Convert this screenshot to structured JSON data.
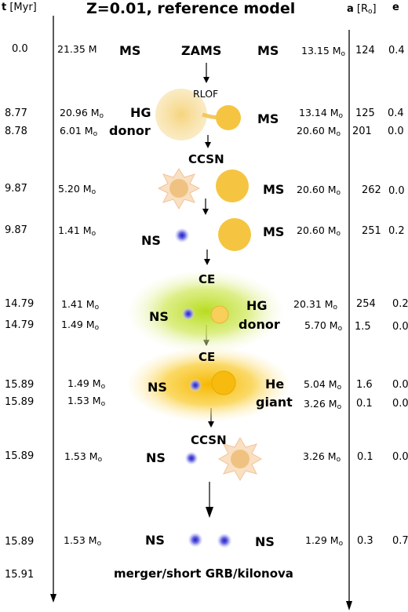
{
  "header": {
    "t_label": "t",
    "t_unit": "[Myr]",
    "title": "Z=0.01, reference model",
    "a_label": "a",
    "a_unit": "[R",
    "a_unit_sub": "o",
    "a_unit_end": "]",
    "e_label": "e"
  },
  "rows": {
    "r1": {
      "t": "0.0",
      "m1": "21.35 M",
      "s1": "MS",
      "ev": "ZAMS",
      "s2": "MS",
      "m2": "13.15 M",
      "m2sub": "o",
      "a": "124",
      "e": "0.4"
    },
    "r2": {
      "t": "8.77",
      "m1": "20.96 M",
      "m1sub": "o",
      "s1": "HG",
      "ev": "RLOF",
      "s2": "MS",
      "m2": "13.14 M",
      "m2sub": "o",
      "a": "125",
      "e": "0.4"
    },
    "r3": {
      "t": "8.78",
      "m1": "6.01 M",
      "m1sub": "o",
      "s1": "donor",
      "m2": "20.60 M",
      "m2sub": "o",
      "a": "201",
      "e": "0.0"
    },
    "r4": {
      "ev": "CCSN"
    },
    "r5": {
      "t": "9.87",
      "m1": "5.20 M",
      "m1sub": "o",
      "s2": "MS",
      "m2": "20.60 M",
      "m2sub": "o",
      "a": "262",
      "e": "0.0"
    },
    "r6": {
      "t": "9.87",
      "m1": "1.41 M",
      "m1sub": "o",
      "s1": "NS",
      "s2": "MS",
      "m2": "20.60 M",
      "m2sub": "o",
      "a": "251",
      "e": "0.2"
    },
    "r7": {
      "ev": "CE"
    },
    "r8": {
      "t": "14.79",
      "m1": "1.41 M",
      "m1sub": "o",
      "s1": "NS",
      "s2": "HG",
      "m2": "20.31 M",
      "m2sub": "o",
      "a": "254",
      "e": "0.2"
    },
    "r9": {
      "t": "14.79",
      "m1": "1.49 M",
      "m1sub": "o",
      "s2": "donor",
      "m2": "5.70 M",
      "m2sub": "o",
      "a": "1.5",
      "e": "0.0"
    },
    "r10": {
      "ev": "CE"
    },
    "r11": {
      "t": "15.89",
      "m1": "1.49 M",
      "m1sub": "o",
      "s1": "NS",
      "s2": "He",
      "m2": "5.04 M",
      "m2sub": "o",
      "a": "1.6",
      "e": "0.0"
    },
    "r12": {
      "t": "15.89",
      "m1": "1.53 M",
      "m1sub": "o",
      "s2": "giant",
      "m2": "3.26 M",
      "m2sub": "o",
      "a": "0.1",
      "e": "0.0"
    },
    "r13": {
      "ev": "CCSN"
    },
    "r14": {
      "t": "15.89",
      "m1": "1.53 M",
      "m1sub": "o",
      "s1": "NS",
      "m2": "3.26 M",
      "m2sub": "o",
      "a": "0.1",
      "e": "0.0"
    },
    "r15": {
      "t": "15.89",
      "m1": "1.53 M",
      "m1sub": "o",
      "s1": "NS",
      "s2": "NS",
      "m2": "1.29 M",
      "m2sub": "o",
      "a": "0.3",
      "e": "0.7"
    },
    "r16": {
      "t": "15.91",
      "ev": "merger/short GRB/kilonova"
    }
  },
  "colors": {
    "star_yellow": "#f5c542",
    "star_pale": "#f7dd92",
    "ns_blue": "#3b3bd1",
    "ce_green": "#c2e23a",
    "ce_orange": "#f8c823",
    "sn_star": "#f3c89c"
  }
}
